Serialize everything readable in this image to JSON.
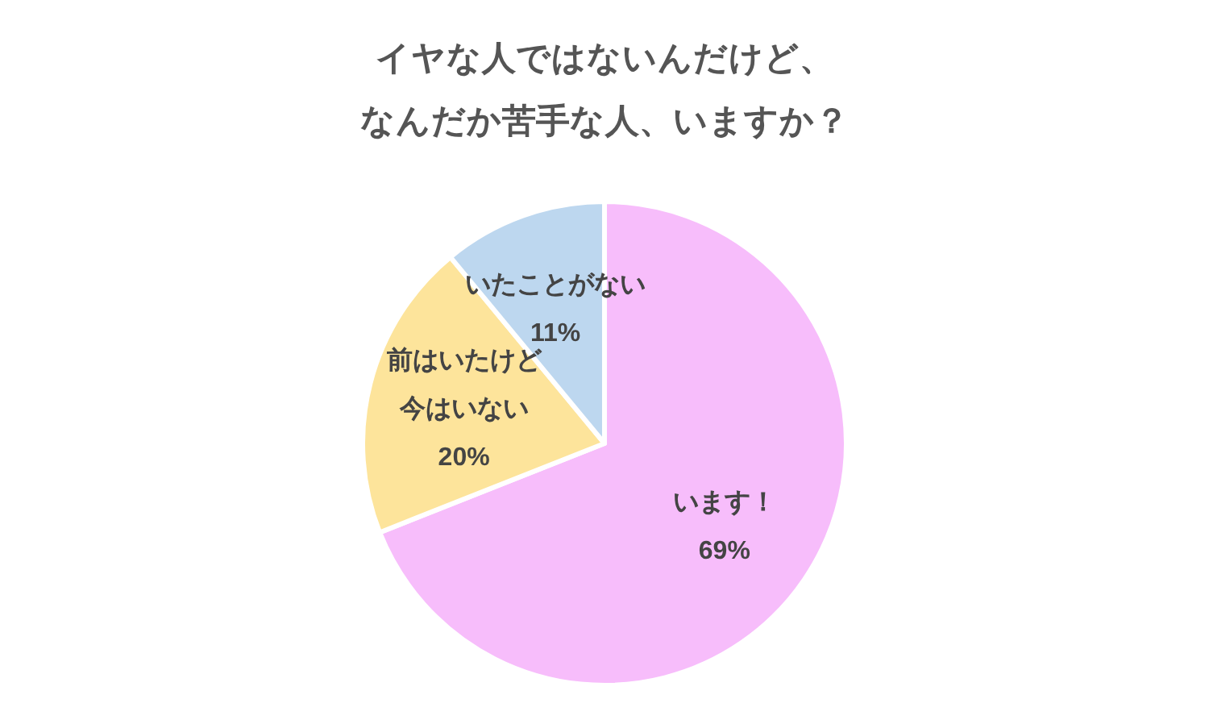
{
  "chart_data": {
    "type": "pie",
    "title": "イヤな人ではないんだけど、なんだか苦手な人、いますか？",
    "categories": [
      "います！",
      "前はいたけど今はいない",
      "いたことがない"
    ],
    "values": [
      69,
      20,
      11
    ],
    "colors": [
      "#f7bdfb",
      "#fde49b",
      "#bdd7ef"
    ],
    "value_labels": [
      "69%",
      "20%",
      "11%"
    ]
  }
}
